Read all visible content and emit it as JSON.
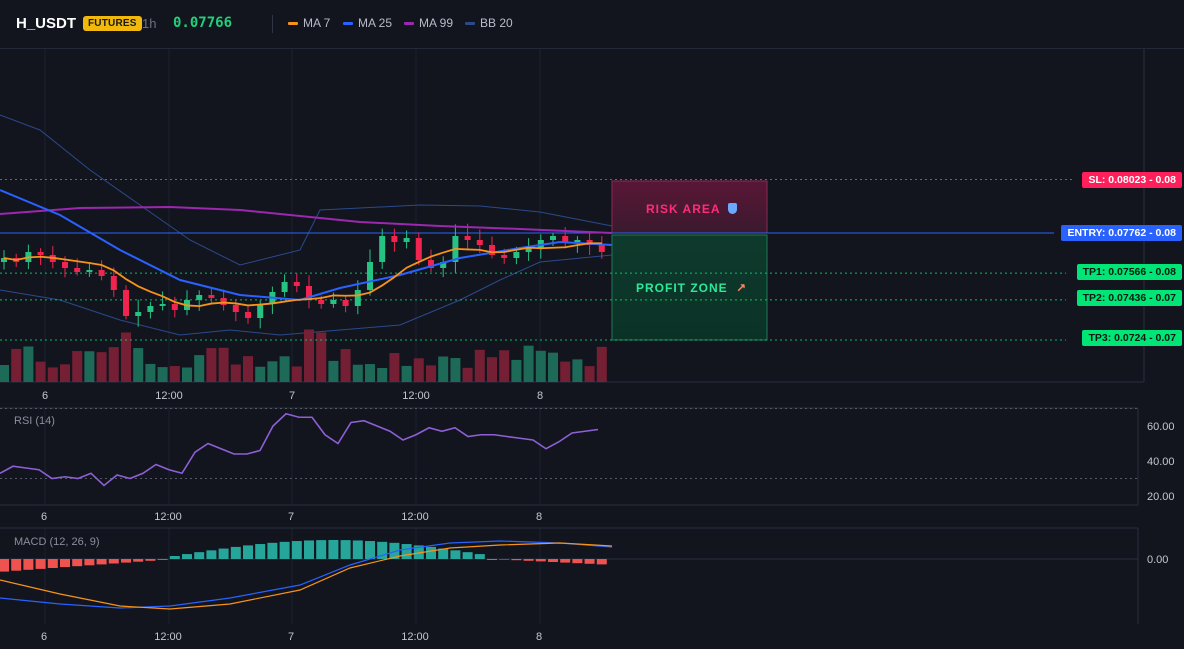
{
  "header": {
    "symbol": "H_USDT",
    "badge": "FUTURES",
    "interval": "1h",
    "price": "0.07766",
    "legend": [
      {
        "label": "MA 7",
        "color": "#f7931a"
      },
      {
        "label": "MA 25",
        "color": "#2962ff"
      },
      {
        "label": "MA 99",
        "color": "#9c27b0"
      },
      {
        "label": "BB 20",
        "color": "#2a4a8c"
      }
    ]
  },
  "levels": {
    "sl": {
      "label": "SL: 0.08023 - 0.08",
      "color": "#ff1f5a"
    },
    "entry": {
      "label": "ENTRY: 0.07762 - 0.08",
      "color": "#2962ff"
    },
    "tp1": {
      "label": "TP1: 0.07566 - 0.08",
      "color": "#00e676"
    },
    "tp2": {
      "label": "TP2: 0.07436 - 0.07",
      "color": "#00e676"
    },
    "tp3": {
      "label": "TP3: 0.0724 - 0.07",
      "color": "#00e676"
    }
  },
  "zones": {
    "risk": {
      "label": "RISK AREA",
      "icon": "shield-icon"
    },
    "profit": {
      "label": "PROFIT ZONE",
      "icon": "rocket-icon"
    }
  },
  "time_axis": [
    "6",
    "12:00",
    "7",
    "12:00",
    "8"
  ],
  "rsi": {
    "label": "RSI (14)",
    "ticks": [
      "60.00",
      "40.00",
      "20.00"
    ]
  },
  "macd": {
    "label": "MACD (12, 26, 9)",
    "ticks": [
      "0.00"
    ]
  },
  "colors": {
    "up": "#26c281",
    "down": "#f0244f",
    "background": "#12151e"
  }
}
